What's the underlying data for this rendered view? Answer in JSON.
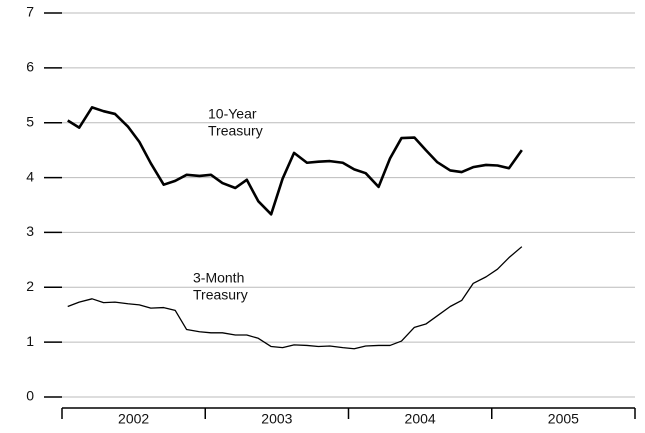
{
  "chart_data": {
    "type": "line",
    "x": [
      2002.04,
      2002.12,
      2002.21,
      2002.29,
      2002.37,
      2002.46,
      2002.54,
      2002.62,
      2002.71,
      2002.79,
      2002.87,
      2002.96,
      2003.04,
      2003.12,
      2003.21,
      2003.29,
      2003.37,
      2003.46,
      2003.54,
      2003.62,
      2003.71,
      2003.79,
      2003.87,
      2003.96,
      2004.04,
      2004.12,
      2004.21,
      2004.29,
      2004.37,
      2004.46,
      2004.54,
      2004.62,
      2004.71,
      2004.79,
      2004.87,
      2004.96,
      2005.04,
      2005.12,
      2005.21
    ],
    "series": [
      {
        "color": "#000000",
        "width": 2.6,
        "values": [
          5.04,
          4.91,
          5.28,
          5.21,
          5.16,
          4.93,
          4.65,
          4.26,
          3.87,
          3.94,
          4.05,
          4.03,
          4.05,
          3.9,
          3.81,
          3.96,
          3.57,
          3.33,
          3.98,
          4.45,
          4.27,
          4.29,
          4.3,
          4.27,
          4.15,
          4.08,
          3.83,
          4.35,
          4.72,
          4.73,
          4.5,
          4.28,
          4.13,
          4.1,
          4.19,
          4.23,
          4.22,
          4.17,
          4.5
        ]
      },
      {
        "color": "#000000",
        "width": 1.3,
        "values": [
          1.65,
          1.73,
          1.79,
          1.72,
          1.73,
          1.7,
          1.68,
          1.62,
          1.63,
          1.58,
          1.23,
          1.19,
          1.17,
          1.17,
          1.13,
          1.13,
          1.07,
          0.92,
          0.9,
          0.95,
          0.94,
          0.92,
          0.93,
          0.9,
          0.88,
          0.93,
          0.94,
          0.94,
          1.02,
          1.27,
          1.33,
          1.48,
          1.65,
          1.76,
          2.07,
          2.19,
          2.33,
          2.54,
          2.74
        ]
      }
    ],
    "annotations": [
      [
        "10-Year",
        "Treasury"
      ],
      [
        "3-Month",
        "Treasury"
      ]
    ],
    "xlim": [
      2002,
      2006
    ],
    "xticks": [
      2002,
      2003,
      2004,
      2005,
      2006
    ],
    "xtick_labels": [
      {
        "value": 2002.5,
        "label": "2002"
      },
      {
        "value": 2003.5,
        "label": "2003"
      },
      {
        "value": 2004.5,
        "label": "2004"
      },
      {
        "value": 2005.5,
        "label": "2005"
      }
    ],
    "ylim": [
      0,
      7
    ],
    "yticks": [
      0,
      1,
      2,
      3,
      4,
      5,
      6,
      7
    ],
    "grid": true
  }
}
